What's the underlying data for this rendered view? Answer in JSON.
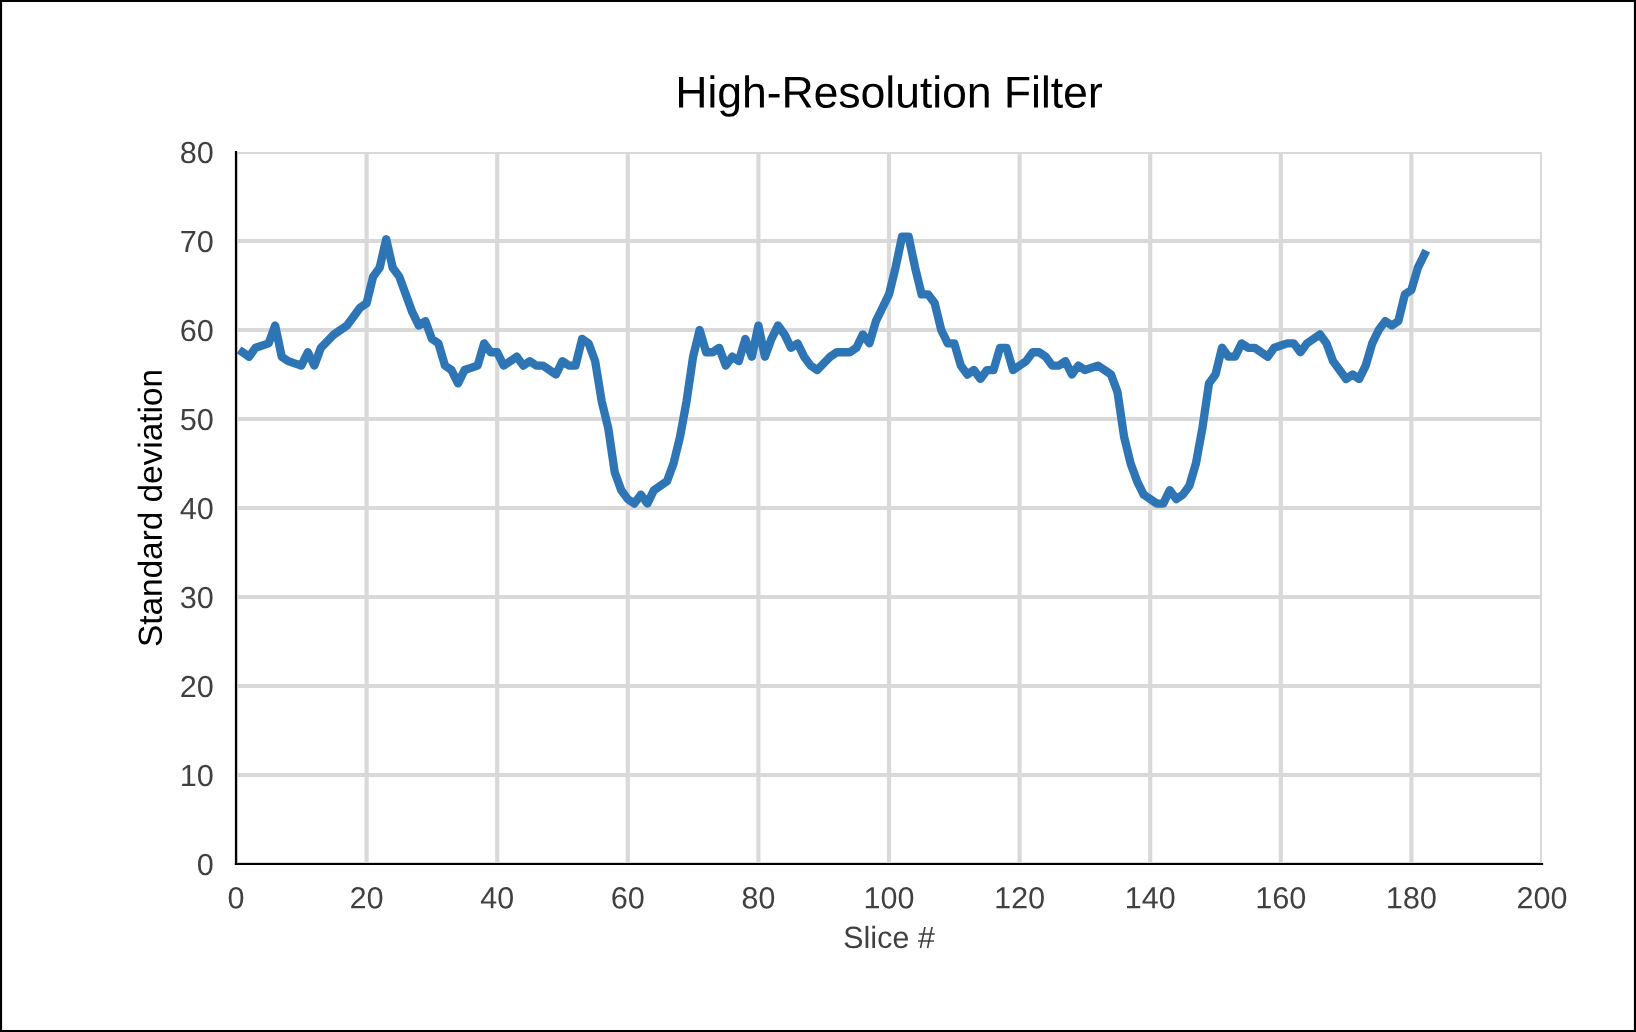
{
  "chart_data": {
    "type": "line",
    "title": "High-Resolution Filter",
    "xlabel": "Slice #",
    "ylabel": "Standard deviation",
    "xlim": [
      0,
      200
    ],
    "xticks": [
      0,
      20,
      40,
      60,
      80,
      100,
      120,
      140,
      160,
      180,
      200
    ],
    "ylim": [
      0,
      80
    ],
    "yticks": [
      0,
      10,
      20,
      30,
      40,
      50,
      60,
      70,
      80
    ],
    "grid": true,
    "line_style": "solid",
    "series": [
      {
        "color": "#2e75b6",
        "x": [
          1,
          2,
          3,
          5,
          6,
          7,
          8,
          10,
          11,
          12,
          13,
          15,
          17,
          19,
          20,
          21,
          22,
          23,
          24,
          25,
          27,
          28,
          29,
          30,
          31,
          32,
          33,
          34,
          35,
          37,
          38,
          39,
          40,
          41,
          43,
          44,
          45,
          46,
          47,
          48,
          49,
          50,
          51,
          52,
          53,
          54,
          55,
          56,
          57,
          58,
          59,
          60,
          61,
          62,
          63,
          64,
          66,
          67,
          68,
          69,
          70,
          71,
          72,
          73,
          74,
          75,
          76,
          77,
          78,
          79,
          80,
          81,
          82,
          83,
          84,
          85,
          86,
          87,
          88,
          89,
          91,
          92,
          94,
          95,
          96,
          97,
          98,
          99,
          100,
          101,
          102,
          103,
          104,
          105,
          106,
          107,
          108,
          109,
          110,
          111,
          112,
          113,
          114,
          115,
          116,
          117,
          118,
          119,
          120,
          121,
          122,
          123,
          124,
          125,
          126,
          127,
          128,
          129,
          130,
          132,
          133,
          134,
          135,
          136,
          137,
          138,
          139,
          141,
          142,
          143,
          144,
          145,
          146,
          147,
          148,
          149,
          150,
          151,
          152,
          153,
          154,
          155,
          156,
          157,
          158,
          159,
          161,
          162,
          163,
          164,
          165,
          166,
          167,
          168,
          169,
          170,
          171,
          172,
          173,
          174,
          175,
          176,
          177,
          178,
          179,
          180,
          181,
          182
        ],
        "values": [
          57.5,
          57,
          58,
          58.5,
          60.5,
          57,
          56.5,
          56,
          57.5,
          56,
          58,
          59.5,
          60.5,
          62.5,
          63,
          66,
          67,
          70.2,
          67,
          66,
          62,
          60.5,
          61,
          59,
          58.5,
          56,
          55.5,
          54,
          55.5,
          56,
          58.5,
          57.5,
          57.5,
          56,
          57,
          56,
          56.5,
          56,
          56,
          55.5,
          55,
          56.5,
          56,
          56,
          59,
          58.5,
          56.5,
          52,
          49,
          44,
          42,
          41,
          40.5,
          41.5,
          40.5,
          42,
          43,
          45,
          48,
          52,
          57,
          60,
          57.5,
          57.5,
          58,
          56,
          57,
          56.5,
          59,
          57,
          60.5,
          57,
          59,
          60.5,
          59.5,
          58,
          58.5,
          57,
          56,
          55.5,
          57,
          57.5,
          57.5,
          58,
          59.5,
          58.5,
          61,
          62.5,
          64,
          67,
          70.5,
          70.5,
          67,
          64,
          64,
          63,
          60,
          58.5,
          58.5,
          56,
          55,
          55.5,
          54.5,
          55.5,
          55.5,
          58,
          58,
          55.5,
          56,
          56.5,
          57.5,
          57.5,
          57,
          56,
          56,
          56.5,
          55,
          56,
          55.5,
          56,
          55.5,
          55,
          53,
          48,
          45,
          43,
          41.5,
          40.5,
          40.5,
          42,
          41,
          41.5,
          42.5,
          45,
          49,
          54,
          55,
          58,
          57,
          57,
          58.5,
          58,
          58,
          57.5,
          57,
          58,
          58.5,
          58.5,
          57.5,
          58.5,
          59,
          59.5,
          58.5,
          56.5,
          55.5,
          54.5,
          55,
          54.5,
          56,
          58.5,
          60,
          61,
          60.5,
          61,
          64,
          64.5,
          67,
          68.5
        ]
      }
    ]
  }
}
